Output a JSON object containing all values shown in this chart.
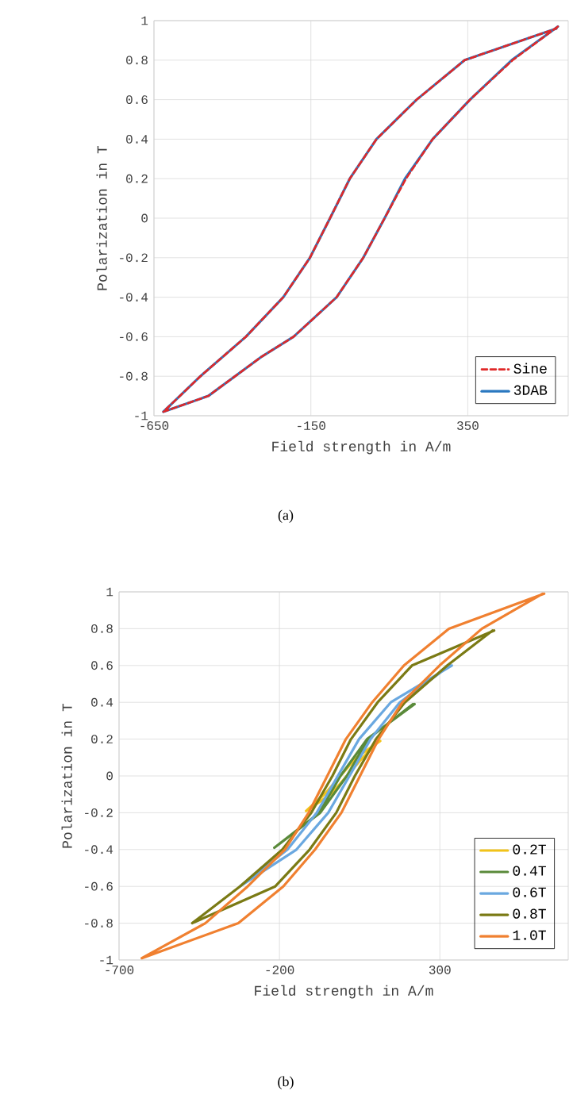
{
  "chart_data": [
    {
      "type": "line",
      "xlabel": "Field strength in A/m",
      "ylabel": "Polarization in T",
      "xlim": [
        -650,
        670
      ],
      "xticks": [
        -650,
        -150,
        350
      ],
      "ylim": [
        -1,
        1
      ],
      "yticks": [
        -1,
        -0.8,
        -0.6,
        -0.4,
        -0.2,
        0,
        0.2,
        0.4,
        0.6,
        0.8,
        1
      ],
      "grid": true,
      "legend": "bottom right",
      "annotations": [
        "(a)"
      ],
      "series": [
        {
          "name": "Sine",
          "color": "#e02828",
          "line_style": "dashed",
          "x": [
            637,
            493,
            357,
            238,
            153,
            85,
            17,
            -68,
            -205,
            -306,
            -477,
            -620,
            -502,
            -357,
            -238,
            -153,
            -89,
            -26,
            59,
            187,
            340,
            632
          ],
          "values": [
            0.97,
            0.8,
            0.6,
            0.4,
            0.2,
            0,
            -0.2,
            -0.4,
            -0.6,
            -0.7,
            -0.9,
            -0.98,
            -0.8,
            -0.6,
            -0.4,
            -0.2,
            0,
            0.2,
            0.4,
            0.6,
            0.8,
            0.96
          ]
        },
        {
          "name": "3DAB",
          "color": "#2a78c0",
          "line_style": "solid",
          "x": [
            637,
            490,
            357,
            238,
            150,
            85,
            17,
            -68,
            -205,
            -306,
            -477,
            -620,
            -502,
            -357,
            -238,
            -153,
            -89,
            -26,
            59,
            187,
            340,
            632
          ],
          "values": [
            0.97,
            0.8,
            0.6,
            0.4,
            0.2,
            0,
            -0.2,
            -0.4,
            -0.6,
            -0.7,
            -0.9,
            -0.98,
            -0.8,
            -0.6,
            -0.4,
            -0.2,
            0,
            0.2,
            0.4,
            0.6,
            0.8,
            0.96
          ]
        }
      ]
    },
    {
      "type": "line",
      "xlabel": "Field strength in A/m",
      "ylabel": "Polarization in T",
      "xlim": [
        -700,
        700
      ],
      "xticks": [
        -700,
        -200,
        300
      ],
      "ylim": [
        -1,
        1
      ],
      "yticks": [
        -1,
        -0.8,
        -0.6,
        -0.4,
        -0.2,
        0,
        0.2,
        0.4,
        0.6,
        0.8,
        1
      ],
      "grid": true,
      "legend": "bottom right",
      "annotations": [
        "(b)"
      ],
      "series": [
        {
          "name": "0.2T",
          "color": "#f2c31a",
          "line_style": "solid",
          "x": [
            114,
            40,
            -10,
            -60,
            -117,
            -40,
            10,
            60,
            110
          ],
          "values": [
            0.19,
            0.1,
            0,
            -0.1,
            -0.19,
            -0.1,
            0,
            0.1,
            0.19
          ]
        },
        {
          "name": "0.4T",
          "color": "#5a8a3a",
          "line_style": "solid",
          "x": [
            221,
            73,
            -10,
            -76,
            -216,
            -73,
            10,
            76,
            216
          ],
          "values": [
            0.39,
            0.2,
            0,
            -0.2,
            -0.39,
            -0.2,
            0,
            0.2,
            0.39
          ]
        },
        {
          "name": "0.6T",
          "color": "#6aa8e0",
          "line_style": "solid",
          "x": [
            337,
            147,
            48,
            -18,
            -84,
            -175,
            -323,
            -147,
            -48,
            18,
            84,
            175,
            332
          ],
          "values": [
            0.6,
            0.4,
            0.2,
            0,
            -0.2,
            -0.4,
            -0.6,
            -0.4,
            -0.2,
            0,
            0.2,
            0.4,
            0.6
          ]
        },
        {
          "name": "0.8T",
          "color": "#7a7a14",
          "line_style": "solid",
          "x": [
            469,
            213,
            106,
            23,
            -35,
            -101,
            -191,
            -323,
            -472,
            -213,
            -106,
            -23,
            35,
            101,
            191,
            323,
            464
          ],
          "values": [
            0.79,
            0.6,
            0.4,
            0.2,
            0,
            -0.2,
            -0.4,
            -0.6,
            -0.8,
            -0.6,
            -0.4,
            -0.2,
            0,
            0.2,
            0.4,
            0.6,
            0.79
          ]
        },
        {
          "name": "1.0T",
          "color": "#f08030",
          "line_style": "solid",
          "x": [
            625,
            328,
            188,
            89,
            7,
            -51,
            -109,
            -183,
            -299,
            -431,
            -629,
            -328,
            -188,
            -89,
            -7,
            51,
            109,
            183,
            299,
            431,
            620
          ],
          "values": [
            0.99,
            0.8,
            0.6,
            0.4,
            0.2,
            0,
            -0.2,
            -0.4,
            -0.6,
            -0.8,
            -0.99,
            -0.8,
            -0.6,
            -0.4,
            -0.2,
            0,
            0.2,
            0.4,
            0.6,
            0.8,
            0.99
          ]
        }
      ]
    }
  ]
}
